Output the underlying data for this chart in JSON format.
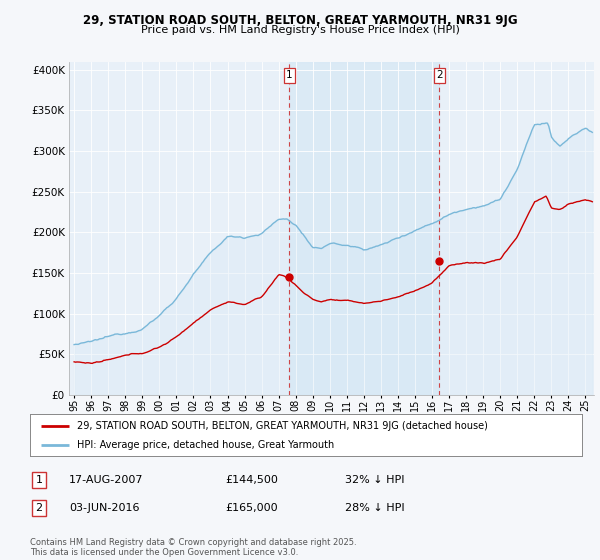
{
  "title_line1": "29, STATION ROAD SOUTH, BELTON, GREAT YARMOUTH, NR31 9JG",
  "title_line2": "Price paid vs. HM Land Registry's House Price Index (HPI)",
  "ylabel_ticks": [
    "£0",
    "£50K",
    "£100K",
    "£150K",
    "£200K",
    "£250K",
    "£300K",
    "£350K",
    "£400K"
  ],
  "ytick_values": [
    0,
    50000,
    100000,
    150000,
    200000,
    250000,
    300000,
    350000,
    400000
  ],
  "ylim": [
    0,
    410000
  ],
  "xlim_start": 1994.7,
  "xlim_end": 2025.5,
  "hpi_color": "#7ab8d9",
  "hpi_fill_color": "#d6e8f5",
  "price_color": "#cc0000",
  "background_color": "#f5f7fa",
  "plot_bg_color": "#e8f0f8",
  "legend_entry1": "29, STATION ROAD SOUTH, BELTON, GREAT YARMOUTH, NR31 9JG (detached house)",
  "legend_entry2": "HPI: Average price, detached house, Great Yarmouth",
  "transaction1_label": "1",
  "transaction1_date": "17-AUG-2007",
  "transaction1_price": "£144,500",
  "transaction1_hpi": "32% ↓ HPI",
  "transaction1_x": 2007.63,
  "transaction1_y": 144500,
  "transaction2_label": "2",
  "transaction2_date": "03-JUN-2016",
  "transaction2_price": "£165,000",
  "transaction2_hpi": "28% ↓ HPI",
  "transaction2_x": 2016.42,
  "transaction2_y": 165000,
  "footer": "Contains HM Land Registry data © Crown copyright and database right 2025.\nThis data is licensed under the Open Government Licence v3.0.",
  "xtick_labels": [
    "95",
    "96",
    "97",
    "98",
    "99",
    "00",
    "01",
    "02",
    "03",
    "04",
    "05",
    "06",
    "07",
    "08",
    "09",
    "10",
    "11",
    "12",
    "13",
    "14",
    "15",
    "16",
    "17",
    "18",
    "19",
    "20",
    "21",
    "22",
    "23",
    "24",
    "25"
  ],
  "xtick_values": [
    1995,
    1996,
    1997,
    1998,
    1999,
    2000,
    2001,
    2002,
    2003,
    2004,
    2005,
    2006,
    2007,
    2008,
    2009,
    2010,
    2011,
    2012,
    2013,
    2014,
    2015,
    2016,
    2017,
    2018,
    2019,
    2020,
    2021,
    2022,
    2023,
    2024,
    2025
  ]
}
